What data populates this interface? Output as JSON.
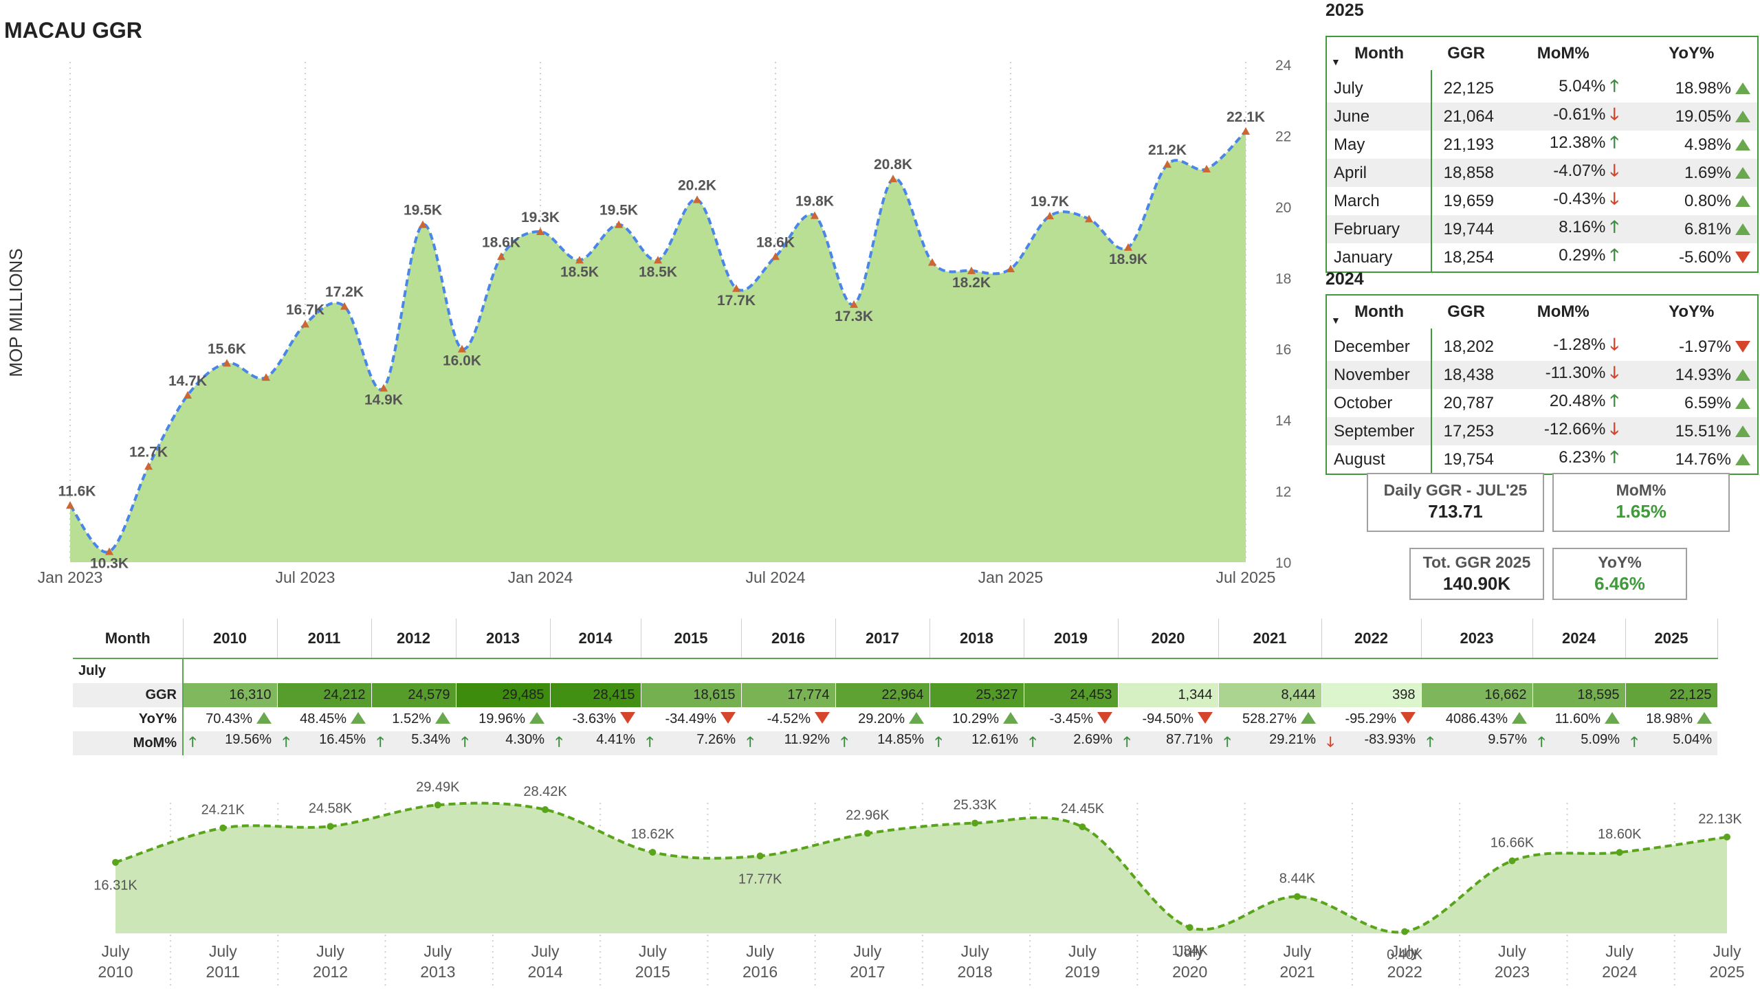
{
  "title": "MACAU GGR",
  "colors": {
    "area_fill": "#b9df95",
    "line": "#4a86e8",
    "marker": "#cc6633",
    "accent_green": "#3f9a3a",
    "up": "#3e8e41",
    "down": "#d5452c"
  },
  "main_chart": {
    "ylabel": "MOP MILLIONS",
    "y_ticks": [
      "24K",
      "22K",
      "20K",
      "18K",
      "16K",
      "14K",
      "12K",
      "10K"
    ],
    "x_ticks": [
      "Jan 2023",
      "Jul 2023",
      "Jan 2024",
      "Jul 2024",
      "Jan 2025",
      "Jul 2025"
    ]
  },
  "chart_data": [
    {
      "type": "area",
      "ylabel": "MOP MILLIONS",
      "ylim": [
        10000,
        24000
      ],
      "x": [
        "Jan 2023",
        "Feb 2023",
        "Mar 2023",
        "Apr 2023",
        "May 2023",
        "Jun 2023",
        "Jul 2023",
        "Aug 2023",
        "Sep 2023",
        "Oct 2023",
        "Nov 2023",
        "Dec 2023",
        "Jan 2024",
        "Feb 2024",
        "Mar 2024",
        "Apr 2024",
        "May 2024",
        "Jun 2024",
        "Jul 2024",
        "Aug 2024",
        "Sep 2024",
        "Oct 2024",
        "Nov 2024",
        "Dec 2024",
        "Jan 2025",
        "Feb 2025",
        "Mar 2025",
        "Apr 2025",
        "May 2025",
        "Jun 2025",
        "Jul 2025"
      ],
      "values": [
        11600,
        10300,
        12700,
        14700,
        15600,
        15200,
        16700,
        17200,
        14900,
        19500,
        16000,
        18600,
        19300,
        18500,
        19500,
        18500,
        20200,
        17700,
        18600,
        19754,
        17253,
        20787,
        18438,
        18202,
        18254,
        19744,
        19659,
        18858,
        21193,
        21064,
        22125
      ],
      "data_labels": [
        "11.6K",
        "10.3K",
        "12.7K",
        "14.7K",
        "15.6K",
        "",
        "16.7K",
        "17.2K",
        "14.9K",
        "19.5K",
        "16.0K",
        "18.6K",
        "19.3K",
        "18.5K",
        "19.5K",
        "18.5K",
        "20.2K",
        "17.7K",
        "18.6K",
        "19.8K",
        "17.3K",
        "20.8K",
        "",
        "18.2K",
        "",
        "19.7K",
        "",
        "18.9K",
        "21.2K",
        "",
        "22.1K"
      ]
    },
    {
      "type": "area",
      "title": "",
      "x": [
        "July 2010",
        "July 2011",
        "July 2012",
        "July 2013",
        "July 2014",
        "July 2015",
        "July 2016",
        "July 2017",
        "July 2018",
        "July 2019",
        "July 2020",
        "July 2021",
        "July 2022",
        "July 2023",
        "July 2024",
        "July 2025"
      ],
      "values": [
        16310,
        24212,
        24579,
        29485,
        28415,
        18615,
        17774,
        22964,
        25327,
        24453,
        1344,
        8444,
        398,
        16662,
        18595,
        22125
      ],
      "data_labels": [
        "16.31K",
        "24.21K",
        "24.58K",
        "29.49K",
        "28.42K",
        "18.62K",
        "17.77K",
        "22.96K",
        "25.33K",
        "24.45K",
        "1.34K",
        "8.44K",
        "0.40K",
        "16.66K",
        "18.60K",
        "22.13K"
      ]
    }
  ],
  "table_2025": {
    "year": "2025",
    "headers": [
      "Month",
      "GGR",
      "MoM%",
      "YoY%"
    ],
    "rows": [
      {
        "month": "July",
        "ggr": "22,125",
        "mom": "5.04%",
        "mom_dir": "up",
        "yoy": "18.98%",
        "yoy_dir": "up"
      },
      {
        "month": "June",
        "ggr": "21,064",
        "mom": "-0.61%",
        "mom_dir": "down",
        "yoy": "19.05%",
        "yoy_dir": "up"
      },
      {
        "month": "May",
        "ggr": "21,193",
        "mom": "12.38%",
        "mom_dir": "up",
        "yoy": "4.98%",
        "yoy_dir": "up"
      },
      {
        "month": "April",
        "ggr": "18,858",
        "mom": "-4.07%",
        "mom_dir": "down",
        "yoy": "1.69%",
        "yoy_dir": "up"
      },
      {
        "month": "March",
        "ggr": "19,659",
        "mom": "-0.43%",
        "mom_dir": "down",
        "yoy": "0.80%",
        "yoy_dir": "up"
      },
      {
        "month": "February",
        "ggr": "19,744",
        "mom": "8.16%",
        "mom_dir": "up",
        "yoy": "6.81%",
        "yoy_dir": "up"
      },
      {
        "month": "January",
        "ggr": "18,254",
        "mom": "0.29%",
        "mom_dir": "up",
        "yoy": "-5.60%",
        "yoy_dir": "down"
      }
    ]
  },
  "table_2024": {
    "year": "2024",
    "headers": [
      "Month",
      "GGR",
      "MoM%",
      "YoY%"
    ],
    "rows": [
      {
        "month": "December",
        "ggr": "18,202",
        "mom": "-1.28%",
        "mom_dir": "down",
        "yoy": "-1.97%",
        "yoy_dir": "down"
      },
      {
        "month": "November",
        "ggr": "18,438",
        "mom": "-11.30%",
        "mom_dir": "down",
        "yoy": "14.93%",
        "yoy_dir": "up"
      },
      {
        "month": "October",
        "ggr": "20,787",
        "mom": "20.48%",
        "mom_dir": "up",
        "yoy": "6.59%",
        "yoy_dir": "up"
      },
      {
        "month": "September",
        "ggr": "17,253",
        "mom": "-12.66%",
        "mom_dir": "down",
        "yoy": "15.51%",
        "yoy_dir": "up"
      },
      {
        "month": "August",
        "ggr": "19,754",
        "mom": "6.23%",
        "mom_dir": "up",
        "yoy": "14.76%",
        "yoy_dir": "up"
      }
    ]
  },
  "cards": {
    "daily_title": "Daily GGR - JUL'25",
    "daily_value": "713.71",
    "mom_title": "MoM%",
    "mom_value": "1.65%",
    "tot_title": "Tot. GGR 2025",
    "tot_value": "140.90K",
    "yoy_title": "YoY%",
    "yoy_value": "6.46%"
  },
  "yearly_table": {
    "header_label": "Month",
    "month_label": "July",
    "row_labels": [
      "GGR",
      "YoY%",
      "MoM%"
    ],
    "years": [
      "2010",
      "2011",
      "2012",
      "2013",
      "2014",
      "2015",
      "2016",
      "2017",
      "2018",
      "2019",
      "2020",
      "2021",
      "2022",
      "2023",
      "2024",
      "2025"
    ],
    "ggr": [
      "16,310",
      "24,212",
      "24,579",
      "29,485",
      "28,415",
      "18,615",
      "17,774",
      "22,964",
      "25,327",
      "24,453",
      "1,344",
      "8,444",
      "398",
      "16,662",
      "18,595",
      "22,125"
    ],
    "ggr_num": [
      16310,
      24212,
      24579,
      29485,
      28415,
      18615,
      17774,
      22964,
      25327,
      24453,
      1344,
      8444,
      398,
      16662,
      18595,
      22125
    ],
    "yoy": [
      "70.43%",
      "48.45%",
      "1.52%",
      "19.96%",
      "-3.63%",
      "-34.49%",
      "-4.52%",
      "29.20%",
      "10.29%",
      "-3.45%",
      "-94.50%",
      "528.27%",
      "-95.29%",
      "4086.43%",
      "11.60%",
      "18.98%"
    ],
    "yoy_dir": [
      "up",
      "up",
      "up",
      "up",
      "down",
      "down",
      "down",
      "up",
      "up",
      "down",
      "down",
      "up",
      "down",
      "up",
      "up",
      "up"
    ],
    "mom": [
      "19.56%",
      "16.45%",
      "5.34%",
      "4.30%",
      "4.41%",
      "7.26%",
      "11.92%",
      "14.85%",
      "12.61%",
      "2.69%",
      "87.71%",
      "29.21%",
      "-83.93%",
      "9.57%",
      "5.09%",
      "5.04%"
    ],
    "mom_dir": [
      "up",
      "up",
      "up",
      "up",
      "up",
      "up",
      "up",
      "up",
      "up",
      "up",
      "up",
      "up",
      "down",
      "up",
      "up",
      "up"
    ]
  },
  "bottom_chart": {
    "x_labels_top": [
      "July",
      "July",
      "July",
      "July",
      "July",
      "July",
      "July",
      "July",
      "July",
      "July",
      "July",
      "July",
      "July",
      "July",
      "July",
      "July"
    ],
    "x_labels_bottom": [
      "2010",
      "2011",
      "2012",
      "2013",
      "2014",
      "2015",
      "2016",
      "2017",
      "2018",
      "2019",
      "2020",
      "2021",
      "2022",
      "2023",
      "2024",
      "2025"
    ]
  }
}
